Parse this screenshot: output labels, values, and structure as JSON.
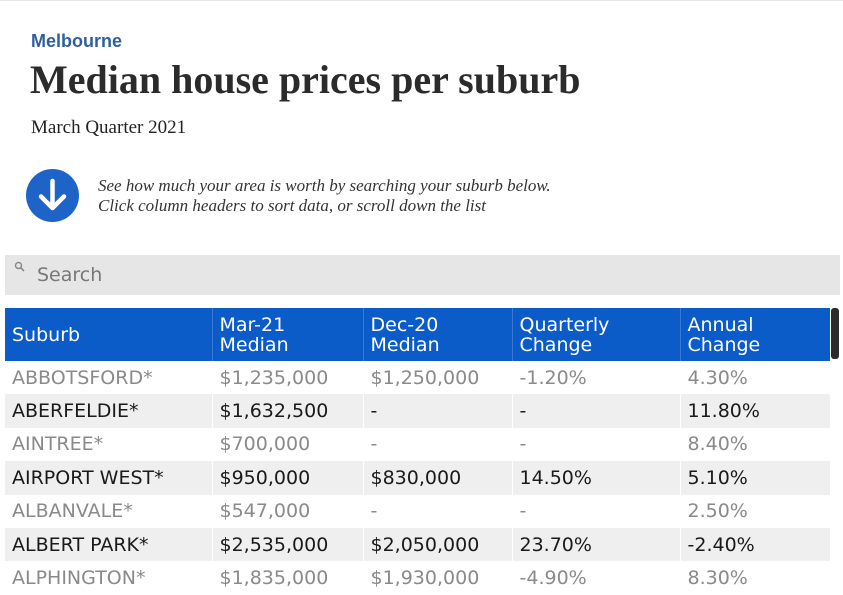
{
  "header": {
    "kicker": "Melbourne",
    "title": "Median house prices per suburb",
    "subtitle": "March Quarter 2021"
  },
  "instructions": {
    "icon": "arrow-down-circle-icon",
    "line1": "See how much your area is worth by searching your suburb below.",
    "line2": "Click column headers to sort data, or scroll down the list"
  },
  "search": {
    "icon": "search-icon",
    "placeholder": "Search",
    "value": ""
  },
  "table": {
    "columns": [
      {
        "line1": "Suburb",
        "line2": ""
      },
      {
        "line1": "Mar-21",
        "line2": "Median"
      },
      {
        "line1": "Dec-20",
        "line2": "Median"
      },
      {
        "line1": "Quarterly",
        "line2": "Change"
      },
      {
        "line1": "Annual",
        "line2": "Change"
      }
    ],
    "rows": [
      [
        "ABBOTSFORD*",
        "$1,235,000",
        "$1,250,000",
        "-1.20%",
        "4.30%"
      ],
      [
        "ABERFELDIE*",
        "$1,632,500",
        "-",
        "-",
        "11.80%"
      ],
      [
        "AINTREE*",
        "$700,000",
        "-",
        "-",
        "8.40%"
      ],
      [
        "AIRPORT WEST*",
        "$950,000",
        "$830,000",
        "14.50%",
        "5.10%"
      ],
      [
        "ALBANVALE*",
        "$547,000",
        "-",
        "-",
        "2.50%"
      ],
      [
        "ALBERT PARK*",
        "$2,535,000",
        "$2,050,000",
        "23.70%",
        "-2.40%"
      ],
      [
        "ALPHINGTON*",
        "$1,835,000",
        "$1,930,000",
        "-4.90%",
        "8.30%"
      ]
    ]
  },
  "colors": {
    "accent": "#0b5bc9",
    "kicker": "#2f5f9e",
    "muted_text": "#8a8a8a",
    "dark_text": "#1a1a1a"
  }
}
